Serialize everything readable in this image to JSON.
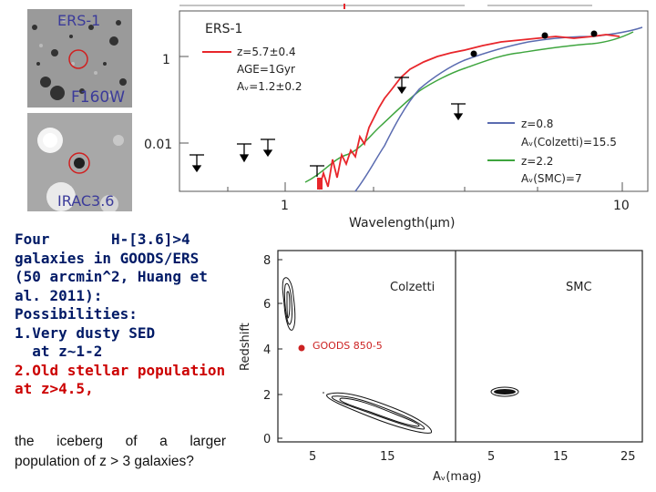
{
  "stamps": {
    "top_label": "ERS-1",
    "top_band": "F160W",
    "bottom_band": "IRAC3.6"
  },
  "sed_plot": {
    "ytick_labels": [
      "1",
      "0.01"
    ],
    "xtick_labels": [
      "1",
      "10"
    ],
    "xlabel": "Wavelength(μm)",
    "legend_title": "ERS-1",
    "legend_red": [
      "z=5.7±0.4",
      "AGE=1Gyr",
      "Aᵥ=1.2±0.2"
    ],
    "legend_blue": [
      "z=0.8",
      "Aᵥ(Colzetti)=15.5"
    ],
    "legend_green": [
      "z=2.2",
      "Aᵥ(SMC)=7"
    ],
    "colors": {
      "red": "#e8262b",
      "blue": "#5a6bb0",
      "green": "#3ea53e",
      "points": "#000000"
    }
  },
  "contour_plot": {
    "ylabel": "Redshift",
    "xlabel": "Aᵥ(mag)",
    "yticks": [
      "8",
      "6",
      "4",
      "2",
      "0"
    ],
    "xticks_left": [
      "5",
      "15"
    ],
    "xticks_right": [
      "5",
      "15",
      "25"
    ],
    "panel_left_label": "Colzetti",
    "panel_right_label": "SMC",
    "source_label": "GOODS 850-5",
    "source_color": "#cc2222"
  },
  "text": {
    "lines_blue": [
      "Four       H-[3.6]>4",
      "galaxies in GOODS/ERS",
      "(50 arcmin^2, Huang et",
      "al. 2011):",
      "Possibilities:",
      "1.Very dusty SED",
      "  at z~1-2"
    ],
    "lines_red": [
      "2.Old stellar population",
      "at z>4.5,"
    ],
    "note_line1": "the iceberg of a larger",
    "note_line2": "population of z > 3 galaxies?"
  }
}
